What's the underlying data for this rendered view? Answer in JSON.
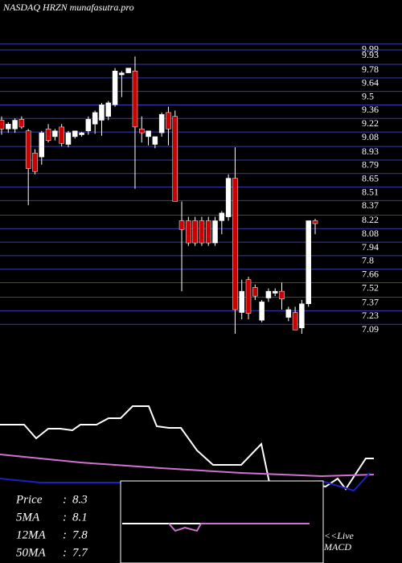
{
  "chart_data": {
    "type": "candlestick",
    "title": "NASDAQ HRZN munafasutra.pro",
    "ylim": [
      7.0,
      10.03
    ],
    "yticks": [
      9.99,
      9.93,
      9.78,
      9.64,
      9.5,
      9.36,
      9.22,
      9.08,
      8.93,
      8.79,
      8.65,
      8.51,
      8.37,
      8.22,
      8.08,
      7.94,
      7.8,
      7.66,
      7.52,
      7.37,
      7.23,
      7.09
    ],
    "grid": true,
    "up_color": "#ffffff",
    "down_color": "#cc0000",
    "open": [
      9.26,
      9.17,
      9.17,
      9.27,
      9.15,
      8.92,
      8.88,
      9.17,
      9.09,
      9.19,
      9.01,
      9.09,
      9.11,
      9.15,
      9.22,
      9.26,
      9.3,
      9.42,
      9.73,
      9.75,
      9.77,
      9.17,
      9.09,
      9.01,
      9.13,
      9.34,
      9.3,
      8.22,
      8.22,
      8.22,
      8.22,
      8.22,
      7.99,
      8.22,
      8.26,
      8.66,
      7.27,
      7.61,
      7.53,
      7.19,
      7.42,
      7.47,
      7.49,
      7.22,
      7.27,
      7.11,
      7.36,
      8.22
    ],
    "high": [
      9.3,
      9.24,
      9.28,
      9.3,
      9.17,
      8.96,
      9.15,
      9.22,
      9.17,
      9.22,
      9.15,
      9.15,
      9.14,
      9.3,
      9.36,
      9.44,
      9.46,
      9.8,
      9.77,
      9.8,
      9.92,
      9.3,
      9.15,
      9.09,
      9.34,
      9.4,
      9.36,
      8.42,
      8.26,
      8.26,
      8.26,
      8.26,
      8.26,
      8.32,
      8.7,
      8.98,
      7.61,
      7.64,
      7.56,
      7.4,
      7.52,
      7.52,
      7.58,
      7.33,
      7.33,
      7.4,
      8.22,
      8.24
    ],
    "low": [
      9.11,
      9.13,
      9.13,
      9.17,
      8.38,
      8.7,
      8.8,
      9.03,
      9.05,
      8.99,
      8.98,
      9.07,
      9.09,
      9.11,
      9.12,
      9.1,
      9.26,
      9.4,
      9.5,
      9.75,
      8.55,
      9.03,
      9.0,
      8.97,
      9.09,
      9.0,
      8.42,
      7.49,
      7.96,
      7.96,
      7.96,
      7.96,
      7.96,
      8.08,
      8.22,
      7.05,
      7.2,
      7.2,
      7.4,
      7.17,
      7.38,
      7.44,
      7.3,
      7.18,
      7.09,
      7.05,
      7.33,
      8.08
    ],
    "close": [
      9.17,
      9.22,
      9.26,
      9.19,
      8.76,
      8.73,
      9.13,
      9.05,
      9.15,
      9.02,
      9.13,
      9.15,
      9.13,
      9.27,
      9.34,
      9.42,
      9.44,
      9.77,
      9.75,
      9.8,
      9.19,
      9.13,
      9.15,
      9.09,
      9.32,
      9.17,
      8.42,
      8.13,
      7.99,
      7.99,
      7.99,
      7.99,
      8.22,
      8.3,
      8.66,
      7.3,
      7.49,
      7.26,
      7.44,
      7.38,
      7.49,
      7.49,
      7.41,
      7.3,
      7.09,
      7.36,
      8.22,
      8.19
    ],
    "indicators": [
      {
        "name": "Price",
        "value": 8.3
      },
      {
        "name": "5MA",
        "value": 8.1
      },
      {
        "name": "12MA",
        "value": 7.8
      },
      {
        "name": "50MA",
        "value": 7.7
      }
    ],
    "macd_label": [
      "<<Live",
      "MACD"
    ]
  }
}
